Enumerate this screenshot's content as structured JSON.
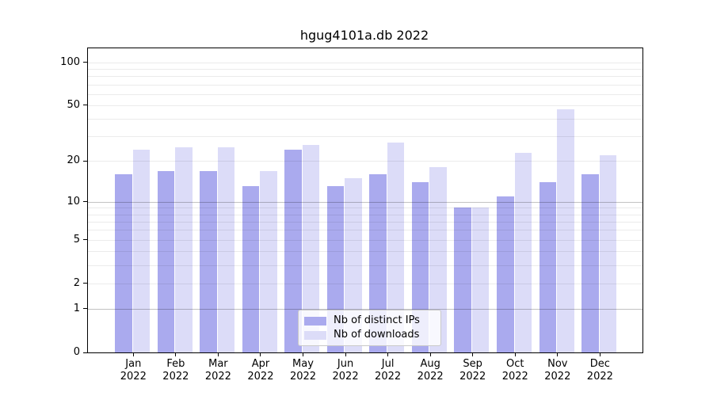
{
  "chart_data": {
    "type": "bar",
    "title": "hgug4101a.db 2022",
    "categories": [
      "Jan 2022",
      "Feb 2022",
      "Mar 2022",
      "Apr 2022",
      "May 2022",
      "Jun 2022",
      "Jul 2022",
      "Aug 2022",
      "Sep 2022",
      "Oct 2022",
      "Nov 2022",
      "Dec 2022"
    ],
    "x_tick_top": [
      "Jan",
      "Feb",
      "Mar",
      "Apr",
      "May",
      "Jun",
      "Jul",
      "Aug",
      "Sep",
      "Oct",
      "Nov",
      "Dec"
    ],
    "x_tick_bottom": "2022",
    "series": [
      {
        "name": "Nb of distinct IPs",
        "color": "#aaaaee",
        "values": [
          16,
          17,
          17,
          13,
          24,
          13,
          16,
          14,
          9,
          11,
          14,
          16
        ]
      },
      {
        "name": "Nb of downloads",
        "color": "#dcdcf8",
        "values": [
          24,
          25,
          25,
          17,
          26,
          15,
          27,
          18,
          9,
          23,
          47,
          22
        ]
      }
    ],
    "xlabel": "",
    "ylabel": "",
    "yscale": "log1p",
    "ylim": [
      0,
      125
    ],
    "y_tick_labels": [
      100,
      50,
      20,
      10,
      5,
      2,
      1,
      0
    ],
    "grid": true,
    "grid_light_values": [
      2,
      3,
      4,
      5,
      6,
      7,
      8,
      9,
      20,
      30,
      40,
      50,
      60,
      70,
      80,
      90,
      100
    ],
    "grid_dark_values": [
      1,
      10
    ],
    "legend_position": "lower center"
  }
}
